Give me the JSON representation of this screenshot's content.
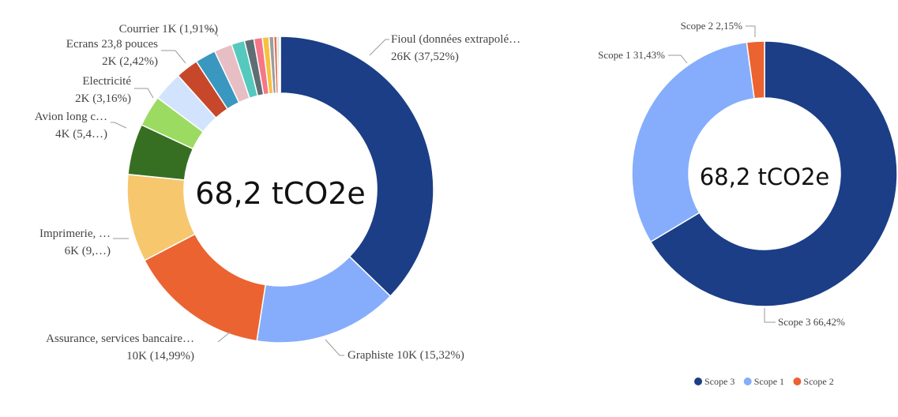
{
  "chart_data": [
    {
      "type": "donut",
      "center_label": "68,2 tCO2e",
      "total": 68.2,
      "slices": [
        {
          "name": "Fioul (données extrapolé…",
          "value_label": "26K",
          "pct": 37.52,
          "pct_label": "(37,52%)",
          "color": "#1b3e87"
        },
        {
          "name": "Graphiste",
          "value_label": "10K",
          "pct": 15.32,
          "pct_label": "(15,32%)",
          "color": "#85adfb"
        },
        {
          "name": "Assurance, services bancaire…",
          "value_label": "10K",
          "pct": 14.99,
          "pct_label": "(14,99%)",
          "color": "#ea6331"
        },
        {
          "name": "Imprimerie, …",
          "value_label": "6K",
          "pct": 9.3,
          "pct_label": "(9,…)",
          "color": "#f7c76e"
        },
        {
          "name": "Avion long c…",
          "value_label": "4K",
          "pct": 5.4,
          "pct_label": "(5,4…)",
          "color": "#376f22"
        },
        {
          "name": "#5",
          "pct": 3.3,
          "color": "#9bdb62"
        },
        {
          "name": "Electricité",
          "value_label": "2K",
          "pct": 3.16,
          "pct_label": "(3,16%)",
          "color": "#d2e3fe"
        },
        {
          "name": "Ecrans 23,8 pouces",
          "value_label": "2K",
          "pct": 2.42,
          "pct_label": "(2,42%)",
          "color": "#c7472a"
        },
        {
          "name": "#8",
          "pct": 2.2,
          "color": "#3a98c0"
        },
        {
          "name": "Courrier",
          "value_label": "1K",
          "pct": 1.91,
          "pct_label": "(1,91%)",
          "color": "#e7bec3"
        },
        {
          "name": "#10",
          "pct": 1.4,
          "color": "#55c9bd"
        },
        {
          "name": "#11",
          "pct": 1.0,
          "color": "#5f6e72"
        },
        {
          "name": "#12",
          "pct": 0.9,
          "color": "#f57788"
        },
        {
          "name": "#13",
          "pct": 0.7,
          "color": "#f5c140"
        },
        {
          "name": "#14",
          "pct": 0.5,
          "color": "#9a9d9f"
        },
        {
          "name": "#15",
          "pct": 0.35,
          "color": "#e96f52"
        },
        {
          "name": "#16",
          "pct": 0.2,
          "color": "#8ed1c7"
        },
        {
          "name": "#17",
          "pct": 0.15,
          "color": "#ebe2b8"
        }
      ],
      "labels": [
        {
          "lines": [
            "Fioul (données extrapolé…",
            "26K (37,52%)"
          ]
        },
        {
          "lines": [
            "Graphiste 10K (15,32%)"
          ]
        },
        {
          "lines": [
            "Assurance, services bancaire…",
            "10K (14,99%)"
          ]
        },
        {
          "lines": [
            "Imprimerie, …",
            "6K (9,…)"
          ]
        },
        {
          "lines": [
            "Avion long c…",
            "4K (5,4…)"
          ]
        },
        {
          "lines": [
            "Electricité",
            "2K (3,16%)"
          ]
        },
        {
          "lines": [
            "Ecrans 23,8 pouces",
            "2K (2,42%)"
          ]
        },
        {
          "lines": [
            "Courrier 1K (1,91%)"
          ]
        }
      ]
    },
    {
      "type": "donut",
      "center_label": "68,2 tCO2e",
      "slices": [
        {
          "name": "Scope 3",
          "pct": 66.42,
          "pct_label": "66,42%",
          "color": "#1b3e87"
        },
        {
          "name": "Scope 1",
          "pct": 31.43,
          "pct_label": "31,43%",
          "color": "#85adfb"
        },
        {
          "name": "Scope 2",
          "pct": 2.15,
          "pct_label": "2,15%",
          "color": "#ea6331"
        }
      ],
      "labels": [
        {
          "lines": [
            "Scope 3 66,42%"
          ]
        },
        {
          "lines": [
            "Scope 1 31,43%"
          ]
        },
        {
          "lines": [
            "Scope 2 2,15%"
          ]
        }
      ],
      "legend": {
        "position": "bottom",
        "items": [
          "Scope 3",
          "Scope 1",
          "Scope 2"
        ]
      }
    }
  ]
}
